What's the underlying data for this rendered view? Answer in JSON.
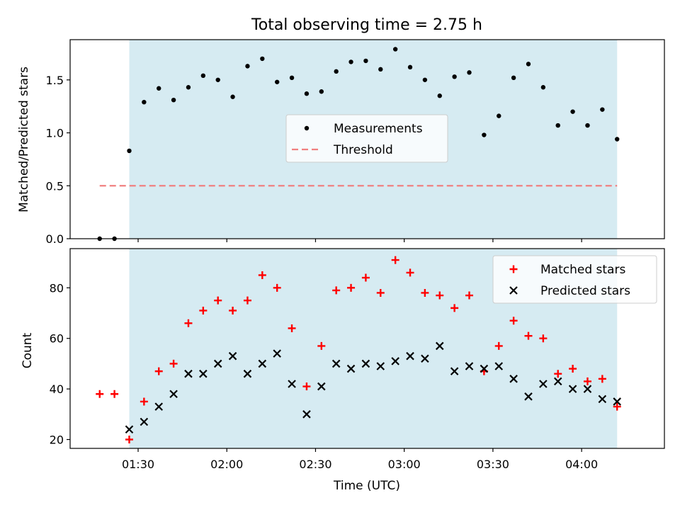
{
  "chart_data": [
    {
      "type": "scatter",
      "title": "Total observing time = 2.75 h",
      "ylabel": "Matched/Predicted stars",
      "xlabel": "",
      "ylim": [
        0,
        1.88
      ],
      "yticks": [
        0.0,
        0.5,
        1.0,
        1.5
      ],
      "ytick_labels": [
        "0.0",
        "0.5",
        "1.0",
        "1.5"
      ],
      "xlim": [
        "01:07",
        "04:28"
      ],
      "shaded_interval": [
        "01:27",
        "04:12"
      ],
      "shade_color": "#add8e6",
      "legend_position": "center",
      "series": [
        {
          "name": "Measurements",
          "marker": "dot",
          "color": "#000000",
          "x": [
            "01:17",
            "01:22",
            "01:27",
            "01:32",
            "01:37",
            "01:42",
            "01:47",
            "01:52",
            "01:57",
            "02:02",
            "02:07",
            "02:12",
            "02:17",
            "02:22",
            "02:27",
            "02:32",
            "02:37",
            "02:42",
            "02:47",
            "02:52",
            "02:57",
            "03:02",
            "03:07",
            "03:12",
            "03:17",
            "03:22",
            "03:27",
            "03:32",
            "03:37",
            "03:42",
            "03:47",
            "03:52",
            "03:57",
            "04:02",
            "04:07",
            "04:12"
          ],
          "y": [
            0.0,
            0.0,
            0.83,
            1.29,
            1.42,
            1.31,
            1.43,
            1.54,
            1.5,
            1.34,
            1.63,
            1.7,
            1.48,
            1.52,
            1.37,
            1.39,
            1.58,
            1.67,
            1.68,
            1.6,
            1.79,
            1.62,
            1.5,
            1.35,
            1.53,
            1.57,
            0.98,
            1.16,
            1.52,
            1.65,
            1.43,
            1.07,
            1.2,
            1.07,
            1.22,
            0.94
          ]
        },
        {
          "name": "Threshold",
          "type": "line",
          "style": "dashed",
          "color": "#f08080",
          "x": [
            "01:17",
            "04:12"
          ],
          "y": [
            0.5,
            0.5
          ]
        }
      ]
    },
    {
      "type": "scatter",
      "title": "",
      "ylabel": "Count",
      "xlabel": "Time (UTC)",
      "ylim": [
        16.5,
        95.5
      ],
      "yticks": [
        20,
        40,
        60,
        80
      ],
      "ytick_labels": [
        "20",
        "40",
        "60",
        "80"
      ],
      "xlim": [
        "01:07",
        "04:28"
      ],
      "xticks": [
        "01:30",
        "02:00",
        "02:30",
        "03:00",
        "03:30",
        "04:00"
      ],
      "xtick_labels": [
        "01:30",
        "02:00",
        "02:30",
        "03:00",
        "03:30",
        "04:00"
      ],
      "shaded_interval": [
        "01:27",
        "04:12"
      ],
      "shade_color": "#add8e6",
      "legend_position": "top-right",
      "series": [
        {
          "name": "Matched stars",
          "marker": "plus",
          "color": "#ff0000",
          "x": [
            "01:17",
            "01:22",
            "01:27",
            "01:32",
            "01:37",
            "01:42",
            "01:47",
            "01:52",
            "01:57",
            "02:02",
            "02:07",
            "02:12",
            "02:17",
            "02:22",
            "02:27",
            "02:32",
            "02:37",
            "02:42",
            "02:47",
            "02:52",
            "02:57",
            "03:02",
            "03:07",
            "03:12",
            "03:17",
            "03:22",
            "03:27",
            "03:32",
            "03:37",
            "03:42",
            "03:47",
            "03:52",
            "03:57",
            "04:02",
            "04:07",
            "04:12"
          ],
          "y": [
            38,
            38,
            20,
            35,
            47,
            50,
            66,
            71,
            75,
            71,
            75,
            85,
            80,
            64,
            41,
            57,
            79,
            80,
            84,
            78,
            91,
            86,
            78,
            77,
            72,
            77,
            47,
            57,
            67,
            61,
            60,
            46,
            48,
            43,
            44,
            33
          ]
        },
        {
          "name": "Predicted stars",
          "marker": "x",
          "color": "#000000",
          "x": [
            "01:27",
            "01:32",
            "01:37",
            "01:42",
            "01:47",
            "01:52",
            "01:57",
            "02:02",
            "02:07",
            "02:12",
            "02:17",
            "02:22",
            "02:27",
            "02:32",
            "02:37",
            "02:42",
            "02:47",
            "02:52",
            "02:57",
            "03:02",
            "03:07",
            "03:12",
            "03:17",
            "03:22",
            "03:27",
            "03:32",
            "03:37",
            "03:42",
            "03:47",
            "03:52",
            "03:57",
            "04:02",
            "04:07",
            "04:12"
          ],
          "y": [
            24,
            27,
            33,
            38,
            46,
            46,
            50,
            53,
            46,
            50,
            54,
            42,
            30,
            41,
            50,
            48,
            50,
            49,
            51,
            53,
            52,
            57,
            47,
            49,
            48,
            49,
            44,
            37,
            42,
            43,
            40,
            40,
            36,
            35
          ]
        }
      ]
    }
  ]
}
